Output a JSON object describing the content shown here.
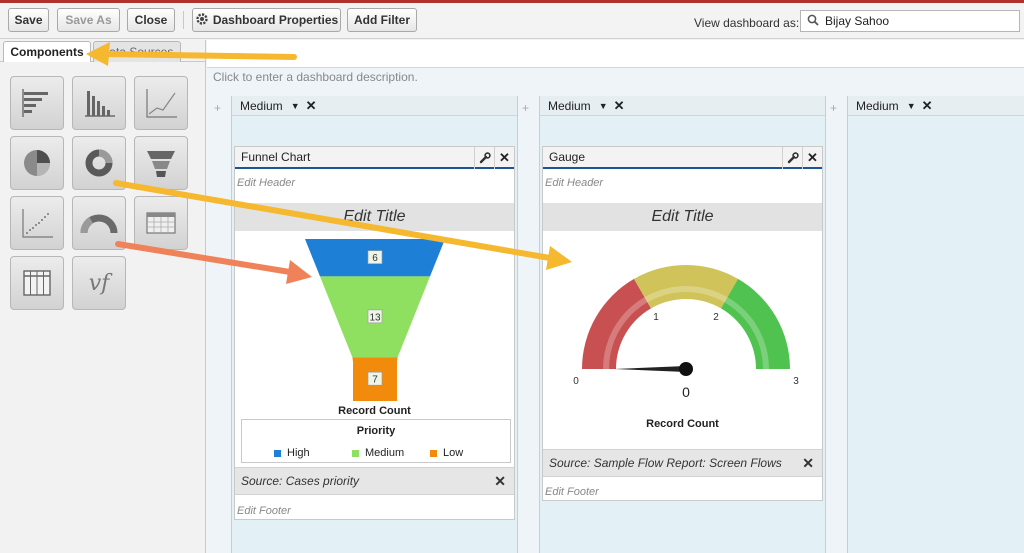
{
  "toolbar": {
    "save": "Save",
    "save_as": "Save As",
    "close": "Close",
    "dashboard_properties": "Dashboard Properties",
    "add_filter": "Add Filter",
    "view_as_label": "View dashboard as:",
    "view_as_value": "Bijay Sahoo"
  },
  "left_panel": {
    "tabs": [
      {
        "label": "Components",
        "active": true
      },
      {
        "label": "Data Sources",
        "active": false
      }
    ],
    "components": [
      {
        "icon": "horizontal-bar-chart-icon"
      },
      {
        "icon": "vertical-bar-chart-icon"
      },
      {
        "icon": "line-chart-icon"
      },
      {
        "icon": "pie-chart-icon"
      },
      {
        "icon": "donut-chart-icon"
      },
      {
        "icon": "funnel-chart-icon"
      },
      {
        "icon": "scatter-chart-icon"
      },
      {
        "icon": "gauge-icon"
      },
      {
        "icon": "metric-icon"
      },
      {
        "icon": "table-icon"
      },
      {
        "icon": "visualforce-icon"
      }
    ],
    "vf_glyph": "vf"
  },
  "dashboard": {
    "description_placeholder": "Click to enter a dashboard description.",
    "columns": [
      {
        "width_label": "Medium"
      },
      {
        "width_label": "Medium"
      },
      {
        "width_label": "Medium"
      }
    ]
  },
  "funnel_widget": {
    "title": "Funnel Chart",
    "edit_header": "Edit Header",
    "edit_title": "Edit Title",
    "axis_title": "Record Count",
    "legend_title": "Priority",
    "source": "Source: Cases priority",
    "edit_footer": "Edit Footer"
  },
  "gauge_widget": {
    "title": "Gauge",
    "edit_header": "Edit Header",
    "edit_title": "Edit Title",
    "axis_title": "Record Count",
    "source": "Source: Sample Flow Report: Screen Flows",
    "edit_footer": "Edit Footer"
  },
  "colors": {
    "high": "#1e7fd6",
    "medium": "#8fe060",
    "low": "#f28a0c",
    "gauge_red": "#c85050",
    "gauge_yellow": "#cfc35a",
    "gauge_green": "#4fc24f",
    "arrow_yellow": "#f5b82e",
    "arrow_orange": "#f0825a"
  },
  "chart_data": [
    {
      "type": "funnel",
      "categories": [
        "High",
        "Medium",
        "Low"
      ],
      "values": [
        6,
        13,
        7
      ],
      "xlabel": "Record Count",
      "legend": {
        "title": "Priority",
        "position": "bottom"
      }
    },
    {
      "type": "gauge",
      "min": 0,
      "max": 3,
      "value": 0,
      "ticks": [
        0,
        1,
        2,
        3
      ],
      "value_label": "0",
      "xlabel": "Record Count"
    }
  ]
}
